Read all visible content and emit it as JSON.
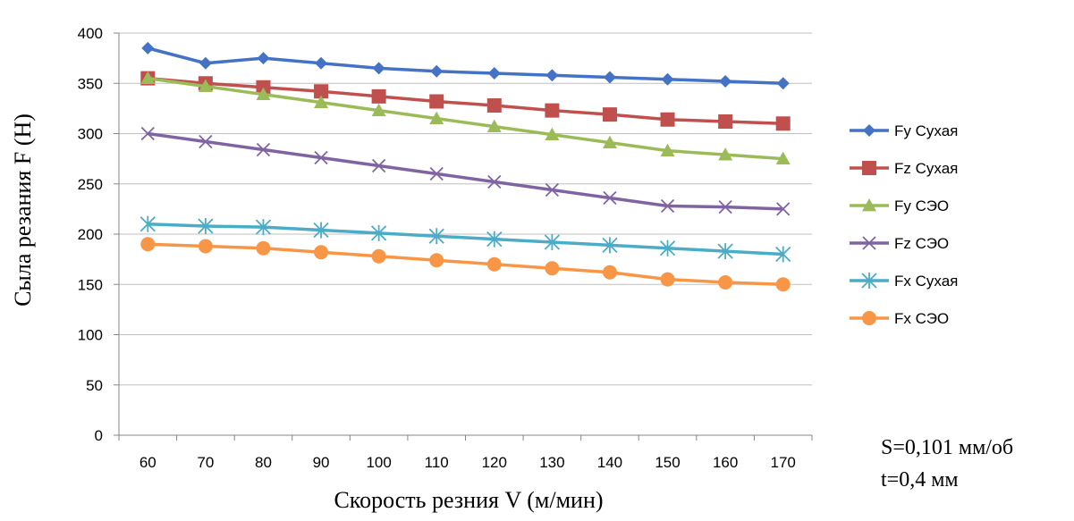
{
  "chart_data": {
    "type": "line",
    "title": "",
    "xlabel": "Скорость резния V (м/мин)",
    "ylabel": "Сыла резания F (Н)",
    "x": [
      60,
      70,
      80,
      90,
      100,
      110,
      120,
      130,
      140,
      150,
      160,
      170
    ],
    "x_tick_labels": [
      "60",
      "70",
      "80",
      "90",
      "100",
      "110",
      "120",
      "130",
      "140",
      "150",
      "160",
      "170"
    ],
    "y_tick_labels": [
      "0",
      "50",
      "100",
      "150",
      "200",
      "250",
      "300",
      "350",
      "400"
    ],
    "ylim": [
      0,
      400
    ],
    "y_tick_step": 50,
    "grid": "horizontal",
    "legend_position": "right",
    "series": [
      {
        "name": "Fy Сухая",
        "color": "#4472C4",
        "marker": "diamond",
        "values": [
          385,
          370,
          375,
          370,
          365,
          362,
          360,
          358,
          356,
          354,
          352,
          350
        ]
      },
      {
        "name": "Fz Сухая",
        "color": "#C0504D",
        "marker": "square",
        "values": [
          355,
          350,
          346,
          342,
          337,
          332,
          328,
          323,
          319,
          314,
          312,
          310
        ]
      },
      {
        "name": "Fy СЭО",
        "color": "#9BBB59",
        "marker": "triangle",
        "values": [
          355,
          347,
          339,
          331,
          323,
          315,
          307,
          299,
          291,
          283,
          279,
          275
        ]
      },
      {
        "name": "Fz СЭО",
        "color": "#8064A2",
        "marker": "x",
        "values": [
          300,
          292,
          284,
          276,
          268,
          260,
          252,
          244,
          236,
          228,
          227,
          225
        ]
      },
      {
        "name": "Fx Сухая",
        "color": "#4BACC6",
        "marker": "star",
        "values": [
          210,
          208,
          207,
          204,
          201,
          198,
          195,
          192,
          189,
          186,
          183,
          180
        ]
      },
      {
        "name": "Fx СЭО",
        "color": "#F79646",
        "marker": "circle",
        "values": [
          190,
          188,
          186,
          182,
          178,
          174,
          170,
          166,
          162,
          155,
          152,
          150
        ]
      }
    ]
  },
  "notes": {
    "feed": "S=0,101 мм/об",
    "depth": "t=0,4 мм"
  }
}
